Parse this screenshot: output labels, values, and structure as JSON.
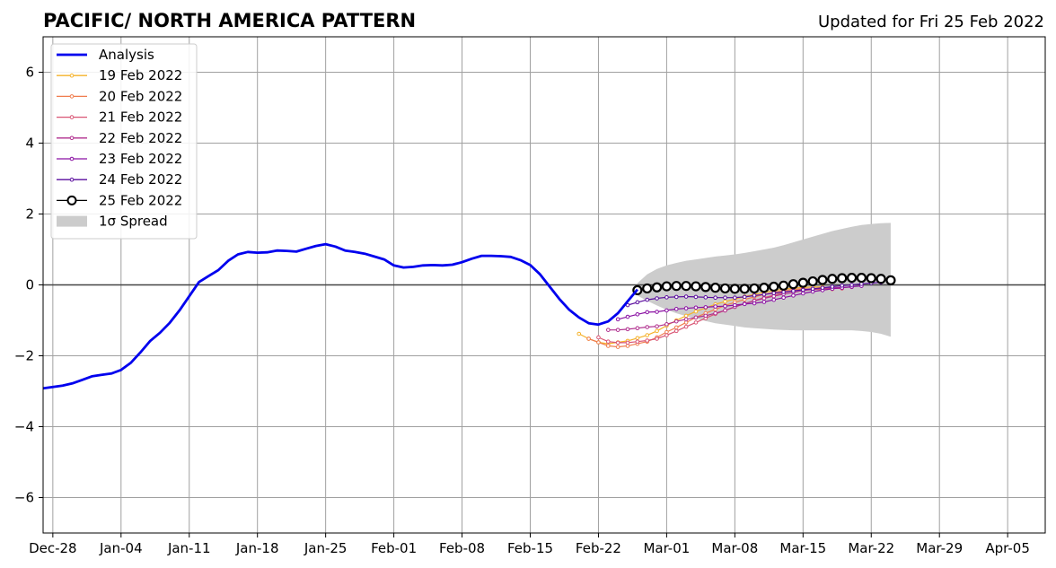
{
  "chart_data": {
    "type": "line",
    "title": "PACIFIC/ NORTH AMERICA PATTERN",
    "subtitle": "Updated for Fri 25 Feb 2022",
    "xlabel": "",
    "ylabel": "",
    "x_ticks": [
      "Dec-28",
      "Jan-04",
      "Jan-11",
      "Jan-18",
      "Jan-25",
      "Feb-01",
      "Feb-08",
      "Feb-15",
      "Feb-22",
      "Mar-01",
      "Mar-08",
      "Mar-15",
      "Mar-22",
      "Mar-29",
      "Apr-05"
    ],
    "x_range": [
      "2021-12-27",
      "2022-04-09"
    ],
    "y_ticks": [
      6,
      4,
      2,
      0,
      -2,
      -4,
      -6
    ],
    "y_tick_labels": [
      "6",
      "4",
      "2",
      "0",
      "−2",
      "−4",
      "−6"
    ],
    "ylim": [
      -7,
      7
    ],
    "grid": true,
    "legend_position": "top-left",
    "spread_label": "1σ Spread",
    "analysis": {
      "name": "Analysis",
      "color": "#0000ee",
      "start": "2021-12-27",
      "values": [
        -2.92,
        -2.88,
        -2.84,
        -2.78,
        -2.68,
        -2.58,
        -2.54,
        -2.5,
        -2.4,
        -2.2,
        -1.9,
        -1.58,
        -1.35,
        -1.07,
        -0.72,
        -0.32,
        0.08,
        0.25,
        0.42,
        0.68,
        0.86,
        0.93,
        0.91,
        0.92,
        0.97,
        0.96,
        0.94,
        1.02,
        1.1,
        1.15,
        1.08,
        0.97,
        0.93,
        0.88,
        0.8,
        0.72,
        0.55,
        0.49,
        0.51,
        0.55,
        0.56,
        0.55,
        0.57,
        0.64,
        0.74,
        0.82,
        0.82,
        0.81,
        0.79,
        0.7,
        0.56,
        0.3,
        -0.05,
        -0.4,
        -0.7,
        -0.92,
        -1.08,
        -1.12,
        -1.03,
        -0.8,
        -0.46,
        -0.13
      ]
    },
    "forecasts": [
      {
        "name": "19 Feb 2022",
        "color": "#f5b22a",
        "start": "2022-02-20",
        "values": [
          -1.38,
          -1.52,
          -1.62,
          -1.66,
          -1.62,
          -1.58,
          -1.5,
          -1.42,
          -1.3,
          -1.15,
          -1.0,
          -0.87,
          -0.75,
          -0.65,
          -0.55,
          -0.47,
          -0.4,
          -0.33,
          -0.27,
          -0.21,
          -0.16,
          -0.12,
          -0.09,
          -0.07,
          -0.06,
          -0.06
        ]
      },
      {
        "name": "20 Feb 2022",
        "color": "#f07d4e",
        "start": "2022-02-21",
        "values": [
          -1.52,
          -1.62,
          -1.72,
          -1.75,
          -1.72,
          -1.66,
          -1.6,
          -1.48,
          -1.33,
          -1.2,
          -1.06,
          -0.92,
          -0.8,
          -0.69,
          -0.58,
          -0.49,
          -0.41,
          -0.34,
          -0.27,
          -0.21,
          -0.16,
          -0.13,
          -0.11,
          -0.12,
          -0.14,
          -0.12
        ]
      },
      {
        "name": "21 Feb 2022",
        "color": "#d95574",
        "start": "2022-02-22",
        "values": [
          -1.48,
          -1.6,
          -1.63,
          -1.63,
          -1.6,
          -1.57,
          -1.52,
          -1.42,
          -1.3,
          -1.18,
          -1.06,
          -0.94,
          -0.82,
          -0.72,
          -0.62,
          -0.53,
          -0.44,
          -0.36,
          -0.29,
          -0.22,
          -0.17,
          -0.13,
          -0.11,
          -0.1,
          -0.1,
          -0.1
        ]
      },
      {
        "name": "22 Feb 2022",
        "color": "#b02f8e",
        "start": "2022-02-23",
        "values": [
          -1.27,
          -1.27,
          -1.25,
          -1.22,
          -1.19,
          -1.17,
          -1.11,
          -1.03,
          -0.97,
          -0.92,
          -0.87,
          -0.8,
          -0.72,
          -0.62,
          -0.53,
          -0.45,
          -0.38,
          -0.32,
          -0.26,
          -0.21,
          -0.16,
          -0.13,
          -0.1,
          -0.08,
          -0.07,
          -0.06
        ]
      },
      {
        "name": "23 Feb 2022",
        "color": "#8a10a3",
        "start": "2022-02-24",
        "values": [
          -0.97,
          -0.9,
          -0.83,
          -0.77,
          -0.76,
          -0.72,
          -0.68,
          -0.66,
          -0.64,
          -0.63,
          -0.61,
          -0.6,
          -0.57,
          -0.54,
          -0.52,
          -0.48,
          -0.42,
          -0.36,
          -0.3,
          -0.24,
          -0.19,
          -0.15,
          -0.11,
          -0.08,
          -0.05,
          -0.03
        ]
      },
      {
        "name": "24 Feb 2022",
        "color": "#5a0c9e",
        "start": "2022-02-25",
        "values": [
          -0.57,
          -0.49,
          -0.42,
          -0.38,
          -0.35,
          -0.34,
          -0.33,
          -0.34,
          -0.35,
          -0.36,
          -0.36,
          -0.36,
          -0.34,
          -0.3,
          -0.27,
          -0.23,
          -0.2,
          -0.17,
          -0.14,
          -0.11,
          -0.08,
          -0.05,
          -0.02,
          0.0,
          0.03,
          0.05,
          0.07
        ]
      },
      {
        "name": "25 Feb 2022",
        "color": "#000000",
        "start": "2022-02-26",
        "values": [
          -0.15,
          -0.1,
          -0.07,
          -0.04,
          -0.03,
          -0.03,
          -0.04,
          -0.06,
          -0.08,
          -0.1,
          -0.11,
          -0.11,
          -0.1,
          -0.08,
          -0.05,
          -0.02,
          0.02,
          0.06,
          0.1,
          0.14,
          0.17,
          0.19,
          0.2,
          0.2,
          0.19,
          0.17,
          0.13
        ]
      }
    ],
    "spread": {
      "color": "#cccccc",
      "start": "2022-02-26",
      "upper": [
        0.05,
        0.3,
        0.45,
        0.55,
        0.62,
        0.68,
        0.72,
        0.76,
        0.8,
        0.83,
        0.86,
        0.9,
        0.95,
        1.0,
        1.05,
        1.12,
        1.2,
        1.28,
        1.36,
        1.44,
        1.52,
        1.58,
        1.64,
        1.69,
        1.72,
        1.74,
        1.75
      ],
      "lower": [
        -0.3,
        -0.45,
        -0.58,
        -0.7,
        -0.8,
        -0.88,
        -0.95,
        -1.02,
        -1.08,
        -1.12,
        -1.16,
        -1.2,
        -1.22,
        -1.24,
        -1.26,
        -1.27,
        -1.28,
        -1.28,
        -1.28,
        -1.28,
        -1.28,
        -1.28,
        -1.28,
        -1.3,
        -1.33,
        -1.38,
        -1.46
      ]
    }
  }
}
